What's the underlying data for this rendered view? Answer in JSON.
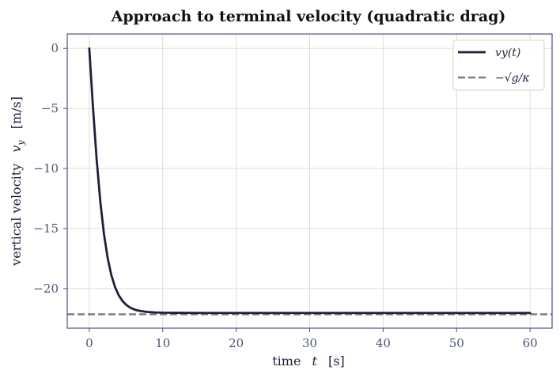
{
  "chart_data": {
    "type": "line",
    "title": "Approach to terminal velocity (quadratic drag)",
    "xlabel": {
      "word": "time",
      "symbol": "t",
      "unit": "[s]"
    },
    "ylabel": {
      "word": "vertical velocity",
      "symbol": "v",
      "subscript": "y",
      "unit": "[m/s]"
    },
    "xlim": [
      -3,
      63
    ],
    "ylim": [
      -23.3,
      1.2
    ],
    "xticks": [
      0,
      10,
      20,
      30,
      40,
      50,
      60
    ],
    "xtick_labels": [
      "0",
      "10",
      "20",
      "30",
      "40",
      "50",
      "60"
    ],
    "yticks": [
      0,
      -5,
      -10,
      -15,
      -20
    ],
    "ytick_labels": [
      "0",
      "−5",
      "−10",
      "−15",
      "−20"
    ],
    "grid": true,
    "legend_position": "top-right",
    "series": [
      {
        "name": "v_y(t)",
        "legend_label": "vy(t)",
        "style": "solid",
        "color": "#1b2238",
        "x": [
          0,
          0.5,
          1,
          1.5,
          2,
          2.5,
          3,
          3.5,
          4,
          4.5,
          5,
          5.5,
          6,
          6.5,
          7,
          7.5,
          8,
          9,
          10,
          12,
          15,
          20,
          30,
          40,
          50,
          60
        ],
        "y": [
          0,
          -4.87,
          -9.21,
          -12.74,
          -15.46,
          -17.45,
          -18.87,
          -19.86,
          -20.55,
          -21.02,
          -21.34,
          -21.56,
          -21.71,
          -21.81,
          -21.87,
          -21.92,
          -21.95,
          -21.99,
          -22.01,
          -22.02,
          -22.03,
          -22.03,
          -22.03,
          -22.03,
          -22.03,
          -22.03
        ]
      },
      {
        "name": "-sqrt(g/kappa)",
        "legend_label": "−√g/κ",
        "style": "dashed",
        "color": "#7a7a7a",
        "x": [
          -3,
          63
        ],
        "y": [
          -22.14,
          -22.14
        ]
      }
    ]
  },
  "colors": {
    "axes_edge": "#4a5573",
    "grid": "#ddd9cc",
    "legend_edge": "#d9d4c0"
  }
}
